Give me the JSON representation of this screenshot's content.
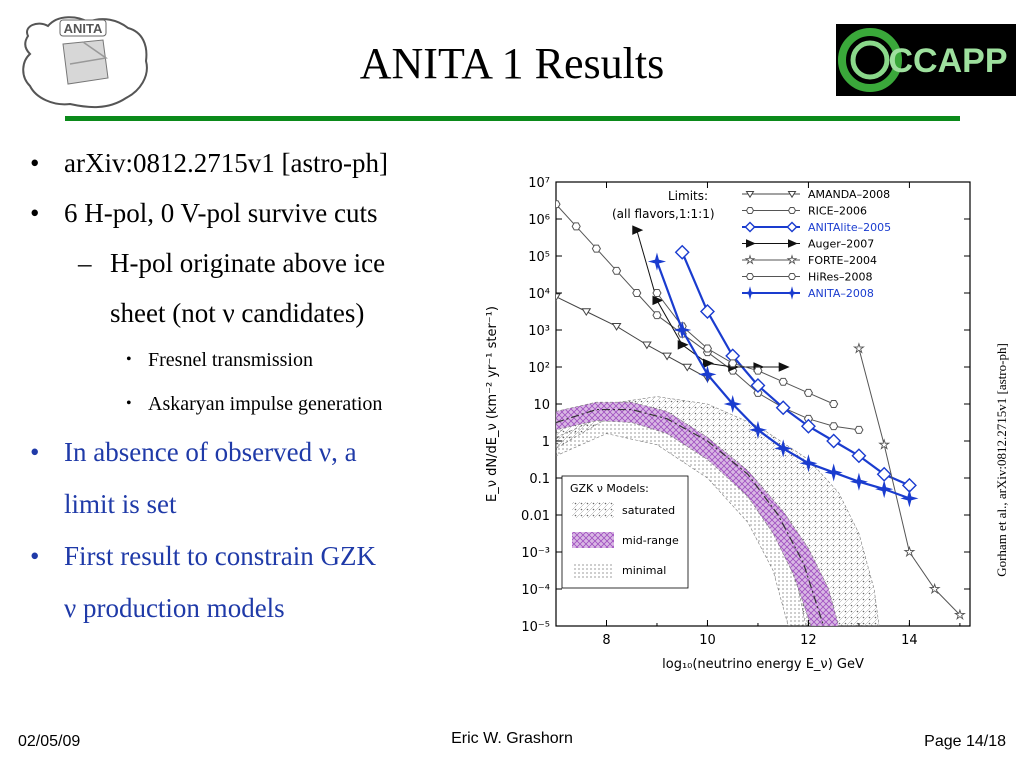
{
  "slide": {
    "title": "ANITA 1 Results",
    "bullets": [
      {
        "text": "arXiv:0812.2715v1 [astro-ph]"
      },
      {
        "text": "6 H-pol, 0 V-pol survive cuts"
      }
    ],
    "sub_bullet": {
      "line1": "H-pol originate above ice",
      "line2": "sheet (not ν candidates)"
    },
    "sub_sub_bullets": [
      "Fresnel transmission",
      "Askaryan impulse generation"
    ],
    "blue_bullets": [
      {
        "line1": "In absence of observed ν, a",
        "line2": "limit is set"
      },
      {
        "line1": "First result to constrain  GZK",
        "line2": "ν production models"
      }
    ],
    "bullet_glyph": "•",
    "dash_glyph": "–",
    "citation": "Gorham et al., arXiv:0812.2715v1 [astro-ph]",
    "footer": {
      "date": "02/05/09",
      "author": "Eric W. Grashorn",
      "page": "Page 14/18"
    },
    "logos": {
      "left": "ANITA",
      "right": "CCAPP"
    },
    "colors": {
      "accent_green": "#0b8a1a",
      "bullet_blue": "#1f3aa8",
      "anita_blue": "#1a3ccf",
      "gzk_purple": "#b070c8"
    }
  },
  "chart_data": {
    "type": "line",
    "xlabel": "log₁₀(neutrino energy E_ν) GeV",
    "ylabel": "E_ν dN/dE_ν (km⁻² yr⁻¹ ster⁻¹)",
    "xlim": [
      7,
      15.2
    ],
    "ylim_log10": [
      -5,
      7
    ],
    "x_ticks": [
      8,
      10,
      12,
      14
    ],
    "y_tick_labels": [
      "10⁷",
      "10⁶",
      "10⁵",
      "10⁴",
      "10³",
      "10²",
      "10",
      "1",
      "0.1",
      "0.01",
      "10⁻³",
      "10⁻⁴",
      "10⁻⁵"
    ],
    "limits_label": "Limits:",
    "limits_sub": "(all flavors,1:1:1)",
    "gzk_label": "GZK  ν Models:",
    "series": [
      {
        "name": "AMANDA–2008",
        "marker": "tri-down",
        "color": "#444444",
        "points": [
          [
            7.0,
            3.9
          ],
          [
            7.6,
            3.5
          ],
          [
            8.2,
            3.1
          ],
          [
            8.8,
            2.6
          ],
          [
            9.2,
            2.3
          ],
          [
            9.6,
            2.0
          ],
          [
            10.0,
            1.7
          ]
        ]
      },
      {
        "name": "RICE–2006",
        "marker": "hexagon",
        "color": "#555555",
        "points": [
          [
            7.0,
            6.4
          ],
          [
            7.4,
            5.8
          ],
          [
            7.8,
            5.2
          ],
          [
            8.2,
            4.6
          ],
          [
            8.6,
            4.0
          ],
          [
            9.0,
            3.4
          ],
          [
            9.5,
            2.9
          ],
          [
            10.0,
            2.4
          ],
          [
            10.5,
            1.9
          ],
          [
            11.0,
            1.3
          ],
          [
            11.5,
            0.9
          ],
          [
            12.0,
            0.6
          ],
          [
            12.5,
            0.4
          ],
          [
            13.0,
            0.3
          ]
        ]
      },
      {
        "name": "ANITAlite–2005",
        "marker": "diamond",
        "color": "#1a3ccf",
        "points": [
          [
            9.5,
            5.1
          ],
          [
            10.0,
            3.5
          ],
          [
            10.5,
            2.3
          ],
          [
            11.0,
            1.5
          ],
          [
            11.5,
            0.9
          ],
          [
            12.0,
            0.4
          ],
          [
            12.5,
            0.0
          ],
          [
            13.0,
            -0.4
          ],
          [
            13.5,
            -0.9
          ],
          [
            14.0,
            -1.2
          ]
        ]
      },
      {
        "name": "Auger–2007",
        "marker": "arrow",
        "color": "#111111",
        "points": [
          [
            8.6,
            5.7
          ],
          [
            9.0,
            3.8
          ],
          [
            9.5,
            2.6
          ],
          [
            10.0,
            2.1
          ],
          [
            10.5,
            2.0
          ],
          [
            11.0,
            2.0
          ],
          [
            11.5,
            2.0
          ]
        ]
      },
      {
        "name": "FORTE–2004",
        "marker": "star",
        "color": "#555555",
        "points": [
          [
            13.0,
            2.5
          ],
          [
            13.5,
            -0.1
          ],
          [
            14.0,
            -3.0
          ],
          [
            14.5,
            -4.0
          ],
          [
            15.0,
            -4.7
          ]
        ]
      },
      {
        "name": "HiRes–2008",
        "marker": "hexagon",
        "color": "#555555",
        "points": [
          [
            9.0,
            4.0
          ],
          [
            9.5,
            3.1
          ],
          [
            10.0,
            2.5
          ],
          [
            10.5,
            2.1
          ],
          [
            11.0,
            1.9
          ],
          [
            11.5,
            1.6
          ],
          [
            12.0,
            1.3
          ],
          [
            12.5,
            1.0
          ]
        ]
      },
      {
        "name": "ANITA–2008",
        "marker": "cross-star",
        "color": "#1a3ccf",
        "points": [
          [
            9.0,
            4.85
          ],
          [
            9.5,
            3.0
          ],
          [
            10.0,
            1.8
          ],
          [
            10.5,
            1.0
          ],
          [
            11.0,
            0.3
          ],
          [
            11.5,
            -0.2
          ],
          [
            12.0,
            -0.6
          ],
          [
            12.5,
            -0.85
          ],
          [
            13.0,
            -1.1
          ],
          [
            13.5,
            -1.3
          ],
          [
            14.0,
            -1.55
          ]
        ]
      }
    ],
    "gzk_models": [
      {
        "name": "saturated",
        "pattern": "dots",
        "upper": [
          [
            7.0,
            0.2
          ],
          [
            8.0,
            1.0
          ],
          [
            9.0,
            1.2
          ],
          [
            10.0,
            1.0
          ],
          [
            11.0,
            0.4
          ],
          [
            12.0,
            -0.5
          ],
          [
            12.6,
            -1.4
          ],
          [
            13.0,
            -2.5
          ],
          [
            13.3,
            -4.0
          ],
          [
            13.4,
            -5.0
          ]
        ],
        "lower": [
          [
            7.0,
            -0.2
          ],
          [
            8.0,
            0.6
          ],
          [
            9.0,
            0.6
          ],
          [
            10.0,
            0.0
          ],
          [
            10.8,
            -1.0
          ],
          [
            11.4,
            -2.5
          ],
          [
            11.8,
            -4.0
          ],
          [
            11.95,
            -5.0
          ]
        ]
      },
      {
        "name": "mid-range",
        "pattern": "purple-hatch",
        "upper": [
          [
            7.0,
            0.8
          ],
          [
            7.8,
            1.05
          ],
          [
            8.5,
            1.05
          ],
          [
            9.2,
            0.8
          ],
          [
            10.0,
            0.1
          ],
          [
            10.8,
            -0.8
          ],
          [
            11.5,
            -1.9
          ],
          [
            12.0,
            -2.9
          ],
          [
            12.4,
            -4.0
          ],
          [
            12.6,
            -5.0
          ]
        ],
        "lower": [
          [
            7.0,
            0.3
          ],
          [
            7.8,
            0.55
          ],
          [
            8.5,
            0.5
          ],
          [
            9.2,
            0.2
          ],
          [
            10.0,
            -0.5
          ],
          [
            10.8,
            -1.5
          ],
          [
            11.3,
            -2.5
          ],
          [
            11.7,
            -3.6
          ],
          [
            12.05,
            -5.0
          ]
        ]
      },
      {
        "name": "minimal",
        "pattern": "fine-dots",
        "upper": [
          [
            7.0,
            0.1
          ],
          [
            8.0,
            0.7
          ],
          [
            9.0,
            0.5
          ],
          [
            10.0,
            -0.2
          ],
          [
            11.0,
            -1.2
          ],
          [
            11.8,
            -2.5
          ],
          [
            12.3,
            -4.0
          ],
          [
            12.5,
            -5.0
          ]
        ],
        "lower": [
          [
            7.0,
            -0.4
          ],
          [
            8.0,
            0.2
          ],
          [
            9.0,
            -0.1
          ],
          [
            10.0,
            -1.0
          ],
          [
            10.8,
            -2.2
          ],
          [
            11.3,
            -3.5
          ],
          [
            11.6,
            -5.0
          ]
        ]
      }
    ],
    "center_line": [
      [
        7.0,
        0.5
      ],
      [
        7.8,
        0.85
      ],
      [
        8.5,
        0.85
      ],
      [
        9.2,
        0.6
      ],
      [
        10.0,
        0.0
      ],
      [
        10.8,
        -0.9
      ],
      [
        11.4,
        -2.0
      ],
      [
        11.9,
        -3.3
      ],
      [
        12.3,
        -5.0
      ]
    ]
  }
}
